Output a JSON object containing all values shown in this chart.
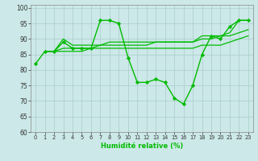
{
  "xlabel": "Humidité relative (%)",
  "bg_color": "#cce8e8",
  "grid_color": "#aacccc",
  "line_color": "#00bb00",
  "xlim": [
    -0.5,
    23.5
  ],
  "ylim": [
    60,
    101
  ],
  "yticks": [
    60,
    65,
    70,
    75,
    80,
    85,
    90,
    95,
    100
  ],
  "xticks": [
    0,
    1,
    2,
    3,
    4,
    5,
    6,
    7,
    8,
    9,
    10,
    11,
    12,
    13,
    14,
    15,
    16,
    17,
    18,
    19,
    20,
    21,
    22,
    23
  ],
  "line1": [
    82,
    86,
    86,
    89,
    87,
    87,
    87,
    96,
    96,
    95,
    84,
    76,
    76,
    77,
    76,
    71,
    69,
    75,
    85,
    91,
    90,
    94,
    96,
    96
  ],
  "line2": [
    null,
    86,
    86,
    90,
    88,
    88,
    88,
    88,
    89,
    89,
    89,
    89,
    89,
    89,
    89,
    89,
    89,
    89,
    91,
    91,
    91,
    92,
    96,
    96
  ],
  "line4": [
    null,
    86,
    86,
    87,
    87,
    87,
    87,
    88,
    88,
    88,
    88,
    88,
    88,
    89,
    89,
    89,
    89,
    89,
    90,
    90,
    91,
    91,
    92,
    93
  ],
  "line5": [
    null,
    86,
    86,
    86,
    86,
    86,
    87,
    87,
    87,
    87,
    87,
    87,
    87,
    87,
    87,
    87,
    87,
    87,
    88,
    88,
    88,
    89,
    90,
    91
  ]
}
